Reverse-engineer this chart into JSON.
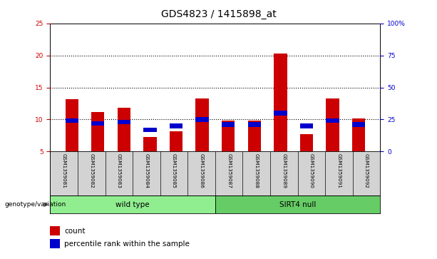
{
  "title": "GDS4823 / 1415898_at",
  "samples": [
    "GSM1359081",
    "GSM1359082",
    "GSM1359083",
    "GSM1359084",
    "GSM1359085",
    "GSM1359086",
    "GSM1359087",
    "GSM1359088",
    "GSM1359089",
    "GSM1359090",
    "GSM1359091",
    "GSM1359092"
  ],
  "count_values": [
    13.2,
    11.2,
    11.8,
    7.3,
    8.2,
    13.3,
    9.8,
    9.8,
    20.3,
    7.7,
    13.3,
    10.2
  ],
  "percentile_values": [
    24,
    22,
    23,
    17,
    20,
    25,
    21,
    21,
    30,
    20,
    24,
    21
  ],
  "ylim_left": [
    5,
    25
  ],
  "ylim_right": [
    0,
    100
  ],
  "yticks_left": [
    5,
    10,
    15,
    20,
    25
  ],
  "yticks_right": [
    0,
    25,
    50,
    75,
    100
  ],
  "ytick_labels_right": [
    "0",
    "25",
    "50",
    "75",
    "100%"
  ],
  "bar_color_red": "#cc0000",
  "bar_color_blue": "#0000cc",
  "bar_width": 0.5,
  "groups": [
    {
      "label": "wild type",
      "color": "#90ee90",
      "start": 0,
      "end": 6
    },
    {
      "label": "SIRT4 null",
      "color": "#66cc66",
      "start": 6,
      "end": 12
    }
  ],
  "genotype_label": "genotype/variation",
  "legend_count_label": "count",
  "legend_percentile_label": "percentile rank within the sample",
  "title_fontsize": 10,
  "tick_fontsize": 6.5,
  "label_fontsize": 7.5,
  "axis_color_left": "#cc0000",
  "axis_color_right": "#0000cc",
  "grid_color": "#000000",
  "sample_box_color": "#d3d3d3",
  "plot_bg": "#ffffff"
}
